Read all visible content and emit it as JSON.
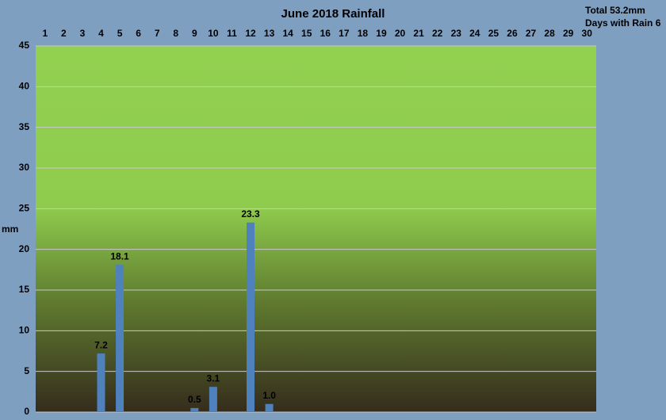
{
  "chart_data": {
    "type": "bar",
    "title": "June 2018 Rainfall",
    "annotations": [
      "Total 53.2mm",
      "Days with Rain 6"
    ],
    "y_label": "mm",
    "categories": [
      "1",
      "2",
      "3",
      "4",
      "5",
      "6",
      "7",
      "8",
      "9",
      "10",
      "11",
      "12",
      "13",
      "14",
      "15",
      "16",
      "17",
      "18",
      "19",
      "20",
      "21",
      "22",
      "23",
      "24",
      "25",
      "26",
      "27",
      "28",
      "29",
      "30"
    ],
    "values": [
      0,
      0,
      0,
      7.2,
      18.1,
      0,
      0,
      0,
      0.5,
      3.1,
      0,
      23.3,
      1.0,
      0,
      0,
      0,
      0,
      0,
      0,
      0,
      0,
      0,
      0,
      0,
      0,
      0,
      0,
      0,
      0,
      0
    ],
    "value_labels": [
      null,
      null,
      null,
      "7.2",
      "18.1",
      null,
      null,
      null,
      "0.5",
      "3.1",
      null,
      "23.3",
      "1.0",
      null,
      null,
      null,
      null,
      null,
      null,
      null,
      null,
      null,
      null,
      null,
      null,
      null,
      null,
      null,
      null,
      null
    ],
    "color": "#4f81bd",
    "ylim": [
      0,
      45
    ],
    "yticks": [
      0,
      5,
      10,
      15,
      20,
      25,
      30,
      35,
      40,
      45
    ],
    "grid": true
  }
}
